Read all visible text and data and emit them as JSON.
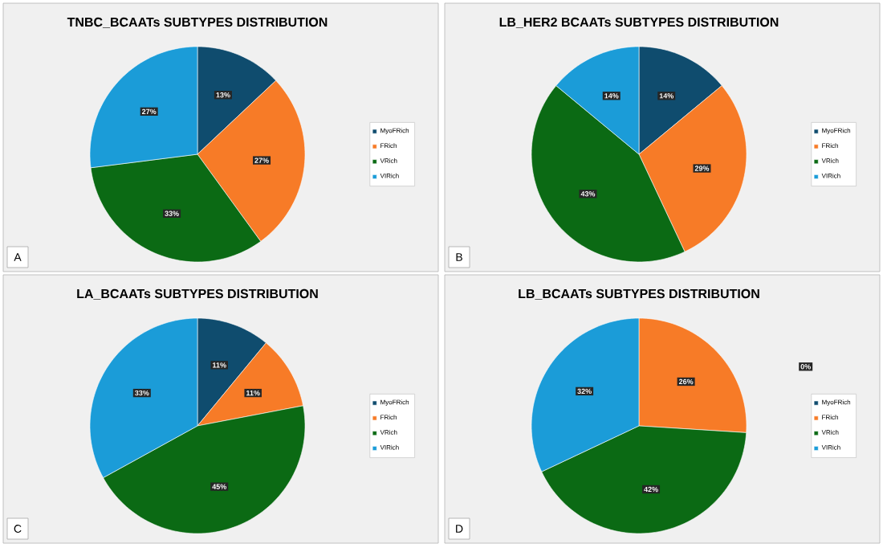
{
  "chart_data": [
    {
      "type": "pie",
      "title": "TNBC_BCAATs SUBTYPES DISTRIBUTION",
      "categories": [
        "MyoFRich",
        "FRich",
        "VRich",
        "VIRich"
      ],
      "values": [
        13,
        27,
        33,
        27
      ],
      "value_labels": [
        "13%",
        "27%",
        "33%",
        "27%"
      ],
      "colors": [
        "#0f4c6e",
        "#f77b27",
        "#0b6a14",
        "#1b9cd8"
      ],
      "legend": "right",
      "annotations": [
        "A"
      ]
    },
    {
      "type": "pie",
      "title": "LB_HER2 BCAATs SUBTYPES DISTRIBUTION",
      "categories": [
        "MyoFRich",
        "FRich",
        "VRich",
        "VIRich"
      ],
      "values": [
        14,
        29,
        43,
        14
      ],
      "value_labels": [
        "14%",
        "29%",
        "43%",
        "14%"
      ],
      "colors": [
        "#0f4c6e",
        "#f77b27",
        "#0b6a14",
        "#1b9cd8"
      ],
      "legend": "right",
      "annotations": [
        "B"
      ]
    },
    {
      "type": "pie",
      "title": "LA_BCAATs SUBTYPES DISTRIBUTION",
      "categories": [
        "MyoFRich",
        "FRich",
        "VRich",
        "VIRich"
      ],
      "values": [
        11,
        11,
        45,
        33
      ],
      "value_labels": [
        "11%",
        "11%",
        "45%",
        "33%"
      ],
      "colors": [
        "#0f4c6e",
        "#f77b27",
        "#0b6a14",
        "#1b9cd8"
      ],
      "legend": "right",
      "annotations": [
        "C"
      ]
    },
    {
      "type": "pie",
      "title": "LB_BCAATs SUBTYPES DISTRIBUTION",
      "categories": [
        "MyoFRich",
        "FRich",
        "VRich",
        "VIRich"
      ],
      "values": [
        0,
        26,
        42,
        32
      ],
      "value_labels": [
        "0%",
        "26%",
        "42%",
        "32%"
      ],
      "colors": [
        "#0f4c6e",
        "#f77b27",
        "#0b6a14",
        "#1b9cd8"
      ],
      "legend": "right",
      "annotations": [
        "D"
      ]
    }
  ]
}
